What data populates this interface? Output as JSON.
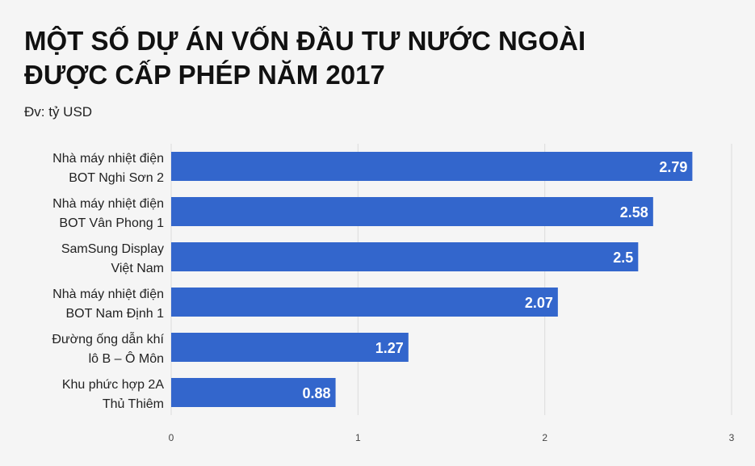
{
  "chart_data": {
    "type": "bar",
    "orientation": "horizontal",
    "title": [
      "MỘT SỐ DỰ ÁN VỐN ĐẦU TƯ NƯỚC NGOÀI",
      "ĐƯỢC CẤP PHÉP NĂM 2017"
    ],
    "subtitle": "Đv: tỷ USD",
    "categories": [
      [
        "Nhà máy nhiệt điện",
        "BOT Nghi Sơn 2"
      ],
      [
        "Nhà máy nhiệt điện",
        "BOT Vân Phong 1"
      ],
      [
        "SamSung Display",
        "Việt Nam"
      ],
      [
        "Nhà máy nhiệt điện",
        "BOT Nam Định 1"
      ],
      [
        "Đường ống dẫn khí",
        "lô B – Ô Môn"
      ],
      [
        "Khu phức hợp 2A",
        "Thủ Thiêm"
      ]
    ],
    "values": [
      2.79,
      2.58,
      2.5,
      2.07,
      1.27,
      0.88
    ],
    "color": "#3366cc",
    "xlim": [
      0,
      3
    ],
    "xticks": [
      0,
      1,
      2,
      3
    ],
    "grid": true
  }
}
